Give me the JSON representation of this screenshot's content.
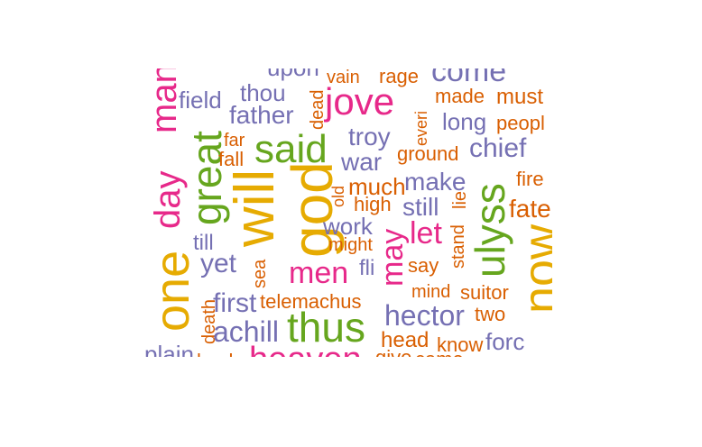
{
  "palette": {
    "purple": "#7570b3",
    "orange": "#d95f02",
    "pink": "#e7298a",
    "green": "#66a61e",
    "gold": "#e6ab02"
  },
  "words": [
    {
      "text": "upon",
      "color": "purple"
    },
    {
      "text": "vain",
      "color": "orange"
    },
    {
      "text": "rage",
      "color": "orange"
    },
    {
      "text": "come",
      "color": "purple"
    },
    {
      "text": "man",
      "color": "pink"
    },
    {
      "text": "field",
      "color": "purple"
    },
    {
      "text": "thou",
      "color": "purple"
    },
    {
      "text": "dead",
      "color": "orange"
    },
    {
      "text": "jove",
      "color": "pink"
    },
    {
      "text": "made",
      "color": "orange"
    },
    {
      "text": "must",
      "color": "orange"
    },
    {
      "text": "father",
      "color": "purple"
    },
    {
      "text": "everi",
      "color": "orange"
    },
    {
      "text": "long",
      "color": "purple"
    },
    {
      "text": "peopl",
      "color": "orange"
    },
    {
      "text": "great",
      "color": "green"
    },
    {
      "text": "far",
      "color": "orange"
    },
    {
      "text": "said",
      "color": "green"
    },
    {
      "text": "troy",
      "color": "purple"
    },
    {
      "text": "fall",
      "color": "orange"
    },
    {
      "text": "ground",
      "color": "orange"
    },
    {
      "text": "chief",
      "color": "purple"
    },
    {
      "text": "war",
      "color": "purple"
    },
    {
      "text": "will",
      "color": "gold"
    },
    {
      "text": "god",
      "color": "gold"
    },
    {
      "text": "fire",
      "color": "orange"
    },
    {
      "text": "day",
      "color": "pink"
    },
    {
      "text": "make",
      "color": "purple"
    },
    {
      "text": "old",
      "color": "orange"
    },
    {
      "text": "much",
      "color": "orange"
    },
    {
      "text": "ulyss",
      "color": "green"
    },
    {
      "text": "high",
      "color": "orange"
    },
    {
      "text": "still",
      "color": "purple"
    },
    {
      "text": "lie",
      "color": "orange"
    },
    {
      "text": "fate",
      "color": "orange"
    },
    {
      "text": "work",
      "color": "purple"
    },
    {
      "text": "let",
      "color": "pink"
    },
    {
      "text": "till",
      "color": "purple"
    },
    {
      "text": "stand",
      "color": "orange"
    },
    {
      "text": "now",
      "color": "gold"
    },
    {
      "text": "might",
      "color": "orange"
    },
    {
      "text": "one",
      "color": "gold"
    },
    {
      "text": "may",
      "color": "pink"
    },
    {
      "text": "yet",
      "color": "purple"
    },
    {
      "text": "sea",
      "color": "orange"
    },
    {
      "text": "say",
      "color": "orange"
    },
    {
      "text": "fli",
      "color": "purple"
    },
    {
      "text": "men",
      "color": "pink"
    },
    {
      "text": "mind",
      "color": "orange"
    },
    {
      "text": "suitor",
      "color": "orange"
    },
    {
      "text": "first",
      "color": "purple"
    },
    {
      "text": "telemachus",
      "color": "orange"
    },
    {
      "text": "death",
      "color": "orange"
    },
    {
      "text": "hector",
      "color": "purple"
    },
    {
      "text": "two",
      "color": "orange"
    },
    {
      "text": "thus",
      "color": "green"
    },
    {
      "text": "achill",
      "color": "purple"
    },
    {
      "text": "head",
      "color": "orange"
    },
    {
      "text": "know",
      "color": "orange"
    },
    {
      "text": "forc",
      "color": "purple"
    },
    {
      "text": "plain",
      "color": "purple"
    },
    {
      "text": "back",
      "color": "orange"
    },
    {
      "text": "heaven",
      "color": "pink"
    },
    {
      "text": "give",
      "color": "orange"
    },
    {
      "text": "came",
      "color": "orange"
    },
    {
      "text": "r",
      "color": "purple"
    },
    {
      "text": "r",
      "color": "orange"
    }
  ]
}
